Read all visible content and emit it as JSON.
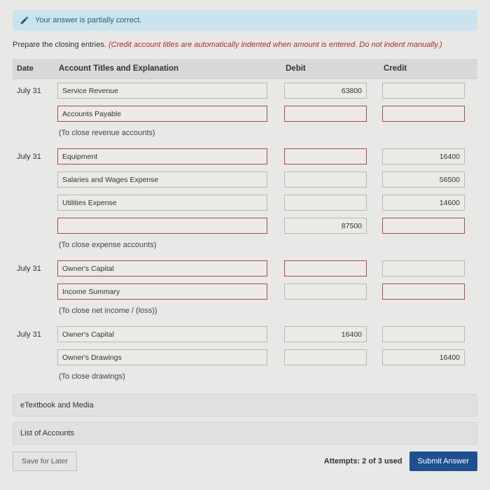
{
  "banner": {
    "text": "Your answer is partially correct."
  },
  "instruction": {
    "plain": "Prepare the closing entries. ",
    "italic": "(Credit account titles are automatically indented when amount is entered. Do not indent manually.)"
  },
  "headers": {
    "date": "Date",
    "acct": "Account Titles and Explanation",
    "debit": "Debit",
    "credit": "Credit"
  },
  "entries": [
    {
      "date": "July 31",
      "lines": [
        {
          "acct": "Service Revenue",
          "debit": "63800",
          "credit": "",
          "acct_wrong": false
        },
        {
          "acct": "Accounts Payable",
          "debit": "",
          "credit": "",
          "acct_wrong": true,
          "debit_wrong": true,
          "credit_wrong": true
        }
      ],
      "note": "(To close revenue accounts)"
    },
    {
      "date": "July 31",
      "lines": [
        {
          "acct": "Equipment",
          "debit": "",
          "credit": "16400",
          "acct_wrong": true,
          "debit_wrong": true
        },
        {
          "acct": "Salaries and Wages Expense",
          "debit": "",
          "credit": "56500"
        },
        {
          "acct": "Utilities Expense",
          "debit": "",
          "credit": "14600"
        },
        {
          "acct": "",
          "debit": "87500",
          "credit": "",
          "acct_wrong": true,
          "credit_wrong": true
        }
      ],
      "note": "(To close expense accounts)"
    },
    {
      "date": "July 31",
      "lines": [
        {
          "acct": "Owner's Capital",
          "debit": "",
          "credit": "",
          "acct_wrong": true,
          "debit_wrong": true
        },
        {
          "acct": "Income Summary",
          "debit": "",
          "credit": "",
          "acct_wrong": true,
          "credit_wrong": true
        }
      ],
      "note": "(To close net income / (loss))"
    },
    {
      "date": "July 31",
      "lines": [
        {
          "acct": "Owner's Capital",
          "debit": "16400",
          "credit": ""
        },
        {
          "acct": "Owner's Drawings",
          "debit": "",
          "credit": "16400"
        }
      ],
      "note": "(To close drawings)"
    }
  ],
  "expandables": [
    "eTextbook and Media",
    "List of Accounts"
  ],
  "footer": {
    "save": "Save for Later",
    "attempts": "Attempts: 2 of 3 used",
    "submit": "Submit Answer"
  }
}
